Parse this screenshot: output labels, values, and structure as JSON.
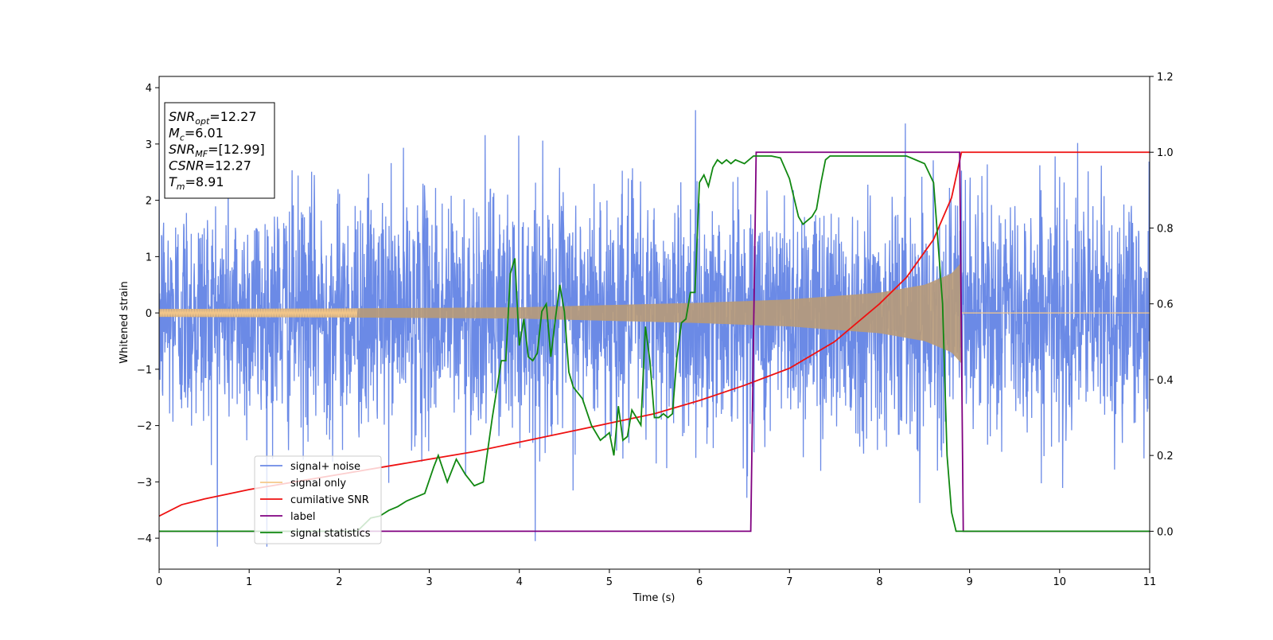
{
  "chart_data": {
    "type": "line",
    "xlabel": "Time (s)",
    "ylabel": "Whitened strain",
    "xlim": [
      0,
      11
    ],
    "ylim": [
      -4.55,
      4.2
    ],
    "y2lim": [
      -0.1,
      1.2
    ],
    "x_ticks": [
      "0",
      "1",
      "2",
      "3",
      "4",
      "5",
      "6",
      "7",
      "8",
      "9",
      "10",
      "11"
    ],
    "y_ticks": [
      "4",
      "3",
      "2",
      "1",
      "0",
      "−1",
      "−2",
      "−3",
      "−4"
    ],
    "y2_ticks": [
      "1.2",
      "1.0",
      "0.8",
      "0.6",
      "0.4",
      "0.2",
      "0.0"
    ],
    "grid": false,
    "legend_position": "lower-left",
    "annotation": {
      "lines": [
        {
          "base": "SNR",
          "sub": "opt",
          "rest": "=12.27"
        },
        {
          "base": "M",
          "sub": "c",
          "rest": "=6.01"
        },
        {
          "base": "SNR",
          "sub": "MF",
          "rest": "=[12.99]"
        },
        {
          "base": "CSNR",
          "sub": "",
          "rest": "=12.27"
        },
        {
          "base": "T",
          "sub": "m",
          "rest": "=8.91"
        }
      ]
    },
    "colors": {
      "signal_noise": "#6b8ae6",
      "signal_only": "#f5c88a",
      "signal_only_overlap": "#b89a78",
      "cumulative_snr": "#ee1111",
      "label": "#800080",
      "signal_statistics": "#118811"
    },
    "series": [
      {
        "name": "signal+ noise",
        "axis": "left",
        "description_values": "gaussian-like noise, amplitude roughly ±2 with spikes to ±3.8, over 0–11 s"
      },
      {
        "name": "signal only",
        "axis": "left",
        "chirp_end": 8.91,
        "envelope": [
          [
            0,
            0.07
          ],
          [
            2,
            0.08
          ],
          [
            4,
            0.1
          ],
          [
            5,
            0.14
          ],
          [
            6,
            0.18
          ],
          [
            7,
            0.24
          ],
          [
            8,
            0.36
          ],
          [
            8.5,
            0.5
          ],
          [
            8.8,
            0.7
          ],
          [
            8.91,
            0.9
          ]
        ]
      },
      {
        "name": "cumilative SNR",
        "axis": "right",
        "x": [
          0,
          0.25,
          0.5,
          1,
          1.5,
          2,
          2.5,
          3,
          3.5,
          4,
          4.5,
          5,
          5.5,
          6,
          6.5,
          7,
          7.5,
          8,
          8.3,
          8.6,
          8.8,
          8.91,
          11
        ],
        "y": [
          0.04,
          0.07,
          0.085,
          0.11,
          0.13,
          0.15,
          0.17,
          0.19,
          0.21,
          0.235,
          0.26,
          0.285,
          0.31,
          0.345,
          0.385,
          0.43,
          0.5,
          0.6,
          0.67,
          0.77,
          0.88,
          1.0,
          1.0
        ]
      },
      {
        "name": "label",
        "axis": "right",
        "x": [
          0,
          6.57,
          6.63,
          8.89,
          8.93,
          11
        ],
        "y": [
          0,
          0,
          1,
          1,
          0,
          0
        ]
      },
      {
        "name": "signal statistics",
        "axis": "right",
        "x": [
          0,
          2.2,
          2.35,
          2.45,
          2.55,
          2.65,
          2.75,
          2.85,
          2.95,
          3.05,
          3.1,
          3.2,
          3.3,
          3.4,
          3.5,
          3.6,
          3.7,
          3.8,
          3.85,
          3.9,
          3.95,
          4.0,
          4.05,
          4.1,
          4.15,
          4.2,
          4.25,
          4.3,
          4.35,
          4.4,
          4.45,
          4.5,
          4.55,
          4.6,
          4.7,
          4.8,
          4.9,
          5.0,
          5.05,
          5.1,
          5.15,
          5.2,
          5.25,
          5.3,
          5.35,
          5.4,
          5.45,
          5.5,
          5.55,
          5.6,
          5.65,
          5.7,
          5.75,
          5.8,
          5.85,
          5.9,
          5.95,
          6.0,
          6.05,
          6.1,
          6.15,
          6.2,
          6.25,
          6.3,
          6.35,
          6.4,
          6.5,
          6.6,
          6.7,
          6.8,
          6.9,
          7.0,
          7.05,
          7.1,
          7.15,
          7.2,
          7.25,
          7.3,
          7.35,
          7.4,
          7.45,
          7.5,
          7.6,
          7.7,
          7.8,
          7.9,
          8.0,
          8.1,
          8.2,
          8.3,
          8.4,
          8.5,
          8.6,
          8.7,
          8.75,
          8.8,
          8.85,
          8.9,
          8.95,
          9.0,
          11
        ],
        "y": [
          0,
          0.0,
          0.035,
          0.04,
          0.055,
          0.065,
          0.08,
          0.09,
          0.1,
          0.17,
          0.2,
          0.13,
          0.19,
          0.15,
          0.12,
          0.13,
          0.3,
          0.45,
          0.45,
          0.68,
          0.72,
          0.49,
          0.56,
          0.46,
          0.45,
          0.47,
          0.58,
          0.6,
          0.46,
          0.56,
          0.65,
          0.58,
          0.42,
          0.38,
          0.35,
          0.28,
          0.24,
          0.26,
          0.2,
          0.33,
          0.24,
          0.25,
          0.32,
          0.3,
          0.28,
          0.54,
          0.45,
          0.3,
          0.3,
          0.31,
          0.3,
          0.31,
          0.46,
          0.55,
          0.56,
          0.63,
          0.63,
          0.92,
          0.94,
          0.91,
          0.96,
          0.98,
          0.97,
          0.98,
          0.97,
          0.98,
          0.97,
          0.99,
          0.99,
          0.99,
          0.985,
          0.93,
          0.88,
          0.83,
          0.81,
          0.82,
          0.83,
          0.85,
          0.92,
          0.98,
          0.99,
          0.99,
          0.99,
          0.99,
          0.99,
          0.99,
          0.99,
          0.99,
          0.99,
          0.99,
          0.98,
          0.97,
          0.92,
          0.6,
          0.2,
          0.05,
          0.0,
          0.0,
          0.0,
          0.0,
          0.0
        ]
      }
    ]
  }
}
